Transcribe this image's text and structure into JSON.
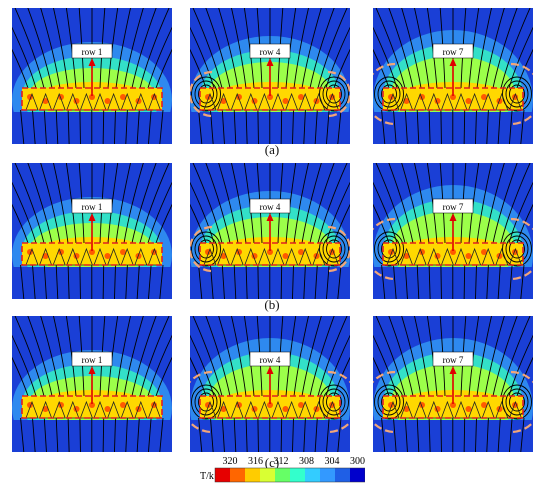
{
  "figure": {
    "rows": [
      {
        "label": "(a)",
        "panels": [
          {
            "tag": "row 1",
            "vortex": 0
          },
          {
            "tag": "row 4",
            "vortex": 1
          },
          {
            "tag": "row 7",
            "vortex": 2
          }
        ]
      },
      {
        "label": "(b)",
        "panels": [
          {
            "tag": "row 1",
            "vortex": 0
          },
          {
            "tag": "row 4",
            "vortex": 1
          },
          {
            "tag": "row 7",
            "vortex": 2
          }
        ]
      },
      {
        "label": "(c)",
        "panels": [
          {
            "tag": "row 1",
            "vortex": 0
          },
          {
            "tag": "row 4",
            "vortex": 2
          },
          {
            "tag": "row 7",
            "vortex": 2
          }
        ]
      }
    ]
  },
  "colorbar": {
    "unit": "T/k",
    "ticks": [
      "320",
      "316",
      "312",
      "308",
      "304",
      "300"
    ],
    "colors": [
      "#e60000",
      "#ff6600",
      "#ffcc00",
      "#d9ff33",
      "#66ff66",
      "#33ffcc",
      "#33ccff",
      "#3399ff",
      "#1f5fe6",
      "#0000cc"
    ]
  },
  "colors": {
    "cold": "#1a3fd6",
    "cool": "#2f8df0",
    "mid": "#33e0c8",
    "warm": "#9cff4a",
    "hot": "#ffd800",
    "hottest": "#ff5a00",
    "enclosure": "#e02020",
    "vortex_ring": "#f2a679",
    "streamline": "#000000"
  }
}
